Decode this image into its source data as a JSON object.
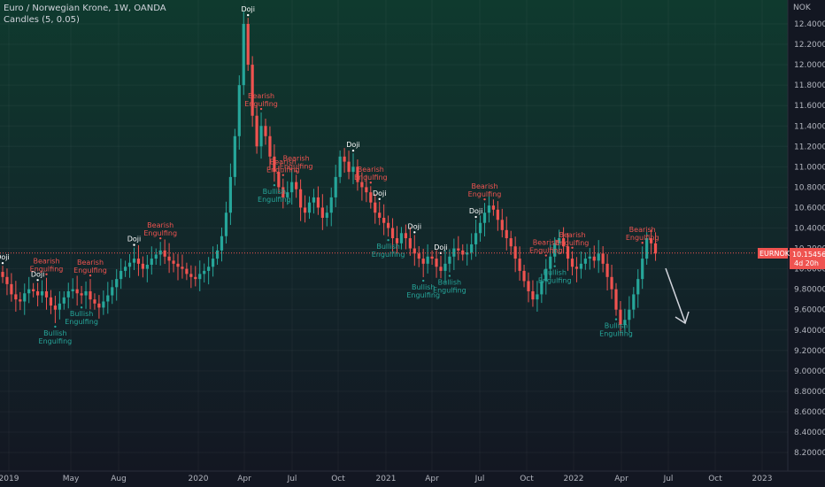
{
  "header": {
    "symbol_title": "Euro / Norwegian Krone, 1W, OANDA",
    "indicator": "Candles (5, 0.05)"
  },
  "price_axis": {
    "currency": "NOK",
    "ticks": [
      "12.40000",
      "12.20000",
      "12.00000",
      "11.80000",
      "11.60000",
      "11.40000",
      "11.20000",
      "11.00000",
      "10.80000",
      "10.60000",
      "10.40000",
      "10.20000",
      "10.00000",
      "9.80000",
      "9.60000",
      "9.40000",
      "9.20000",
      "9.00000",
      "8.80000",
      "8.60000",
      "8.40000",
      "8.20000"
    ],
    "symbol_tag": "EURNOK",
    "last_price": "10.15456",
    "countdown": "4d 20h"
  },
  "time_axis": {
    "labels": [
      "2019",
      "May",
      "Aug",
      "2020",
      "Apr",
      "Jul",
      "Oct",
      "2021",
      "Apr",
      "Jul",
      "Oct",
      "2022",
      "Apr",
      "Jul",
      "Oct",
      "2023"
    ]
  },
  "colors": {
    "background": "#131722",
    "bull": "#26a69a",
    "bear": "#ef5350",
    "bull_label": "#26a69a",
    "bear_label": "#ef5350",
    "doji_label": "#ffffff",
    "arrow": "#d1d4dc"
  },
  "chart_data": {
    "type": "candlestick",
    "title": "Euro / Norwegian Krone, 1W, OANDA",
    "ylabel": "NOK",
    "ylim": [
      8.1,
      12.6
    ],
    "last_price": 10.15456,
    "annotation_labels": {
      "bullish": [
        "Bullish",
        "Engulfing"
      ],
      "bearish": [
        "Bearish",
        "Engulfing"
      ],
      "doji": "Doji"
    },
    "closes": [
      9.92,
      9.85,
      9.75,
      9.7,
      9.68,
      9.76,
      9.8,
      9.78,
      9.74,
      9.78,
      9.72,
      9.64,
      9.6,
      9.66,
      9.72,
      9.78,
      9.8,
      9.76,
      9.74,
      9.78,
      9.7,
      9.66,
      9.62,
      9.68,
      9.74,
      9.82,
      9.9,
      9.98,
      10.02,
      10.06,
      10.1,
      10.05,
      10.0,
      10.04,
      10.1,
      10.14,
      10.18,
      10.12,
      10.08,
      10.05,
      10.02,
      10.0,
      9.95,
      9.92,
      9.9,
      9.95,
      9.98,
      10.02,
      10.1,
      10.18,
      10.32,
      10.55,
      10.9,
      11.3,
      11.8,
      12.4,
      12.0,
      11.5,
      11.2,
      11.4,
      11.3,
      11.1,
      10.95,
      10.8,
      10.7,
      10.75,
      10.85,
      10.78,
      10.6,
      10.55,
      10.65,
      10.7,
      10.6,
      10.5,
      10.55,
      10.7,
      10.9,
      11.1,
      11.05,
      10.95,
      11.0,
      10.85,
      10.8,
      10.75,
      10.65,
      10.55,
      10.5,
      10.45,
      10.4,
      10.3,
      10.25,
      10.35,
      10.3,
      10.2,
      10.15,
      10.1,
      10.05,
      10.12,
      10.1,
      10.02,
      9.98,
      10.05,
      10.12,
      10.2,
      10.18,
      10.14,
      10.16,
      10.24,
      10.35,
      10.45,
      10.55,
      10.62,
      10.58,
      10.48,
      10.38,
      10.3,
      10.22,
      10.1,
      9.98,
      9.88,
      9.78,
      9.7,
      9.75,
      9.88,
      10.0,
      10.12,
      10.25,
      10.3,
      10.22,
      10.1,
      10.02,
      10.0,
      10.05,
      10.1,
      10.12,
      10.08,
      10.15,
      10.05,
      9.92,
      9.8,
      9.6,
      9.45,
      9.5,
      9.6,
      9.75,
      9.9,
      10.1,
      10.3,
      10.25,
      10.15
    ],
    "signals": [
      {
        "candle": 0,
        "type": "doji"
      },
      {
        "candle": 8,
        "type": "doji"
      },
      {
        "candle": 10,
        "type": "bearish"
      },
      {
        "candle": 12,
        "type": "bullish"
      },
      {
        "candle": 18,
        "type": "bullish"
      },
      {
        "candle": 20,
        "type": "bearish"
      },
      {
        "candle": 30,
        "type": "doji"
      },
      {
        "candle": 36,
        "type": "bearish"
      },
      {
        "candle": 56,
        "type": "doji"
      },
      {
        "candle": 59,
        "type": "bearish"
      },
      {
        "candle": 62,
        "type": "bullish"
      },
      {
        "candle": 64,
        "type": "bearish"
      },
      {
        "candle": 67,
        "type": "bearish"
      },
      {
        "candle": 80,
        "type": "doji"
      },
      {
        "candle": 84,
        "type": "bearish"
      },
      {
        "candle": 86,
        "type": "doji"
      },
      {
        "candle": 88,
        "type": "bullish"
      },
      {
        "candle": 94,
        "type": "doji"
      },
      {
        "candle": 96,
        "type": "bullish"
      },
      {
        "candle": 100,
        "type": "doji"
      },
      {
        "candle": 102,
        "type": "bullish"
      },
      {
        "candle": 108,
        "type": "doji"
      },
      {
        "candle": 110,
        "type": "bearish"
      },
      {
        "candle": 124,
        "type": "bearish"
      },
      {
        "candle": 126,
        "type": "bullish"
      },
      {
        "candle": 130,
        "type": "bearish"
      },
      {
        "candle": 140,
        "type": "bullish"
      },
      {
        "candle": 146,
        "type": "bearish"
      }
    ]
  }
}
